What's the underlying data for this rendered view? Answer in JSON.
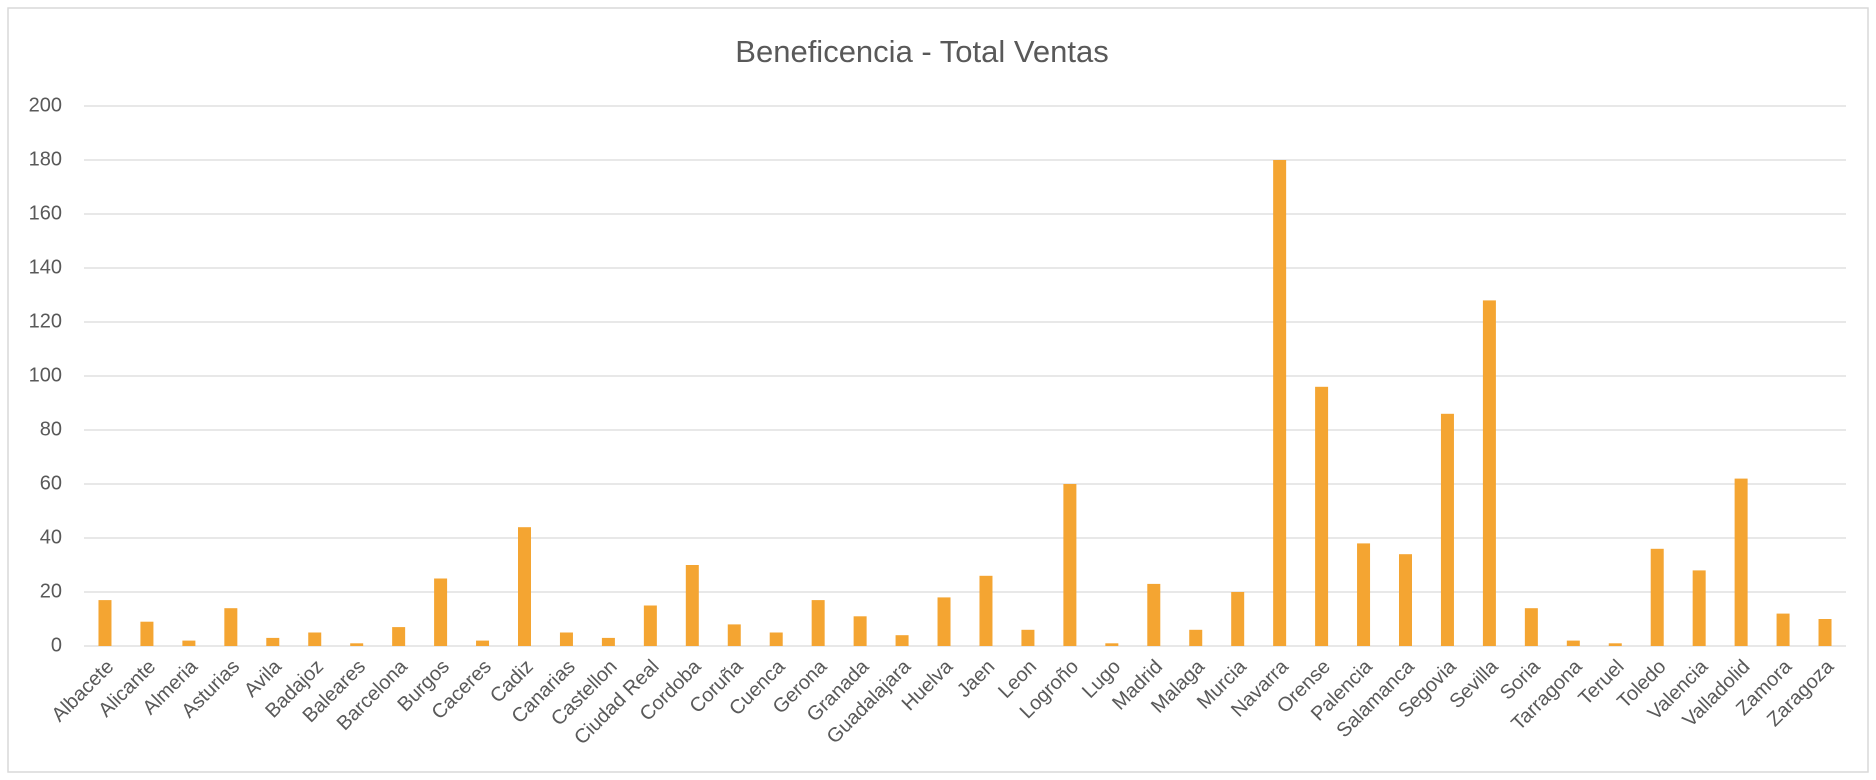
{
  "chart_data": {
    "type": "bar",
    "title": "Beneficencia - Total Ventas",
    "categories": [
      "Albacete",
      "Alicante",
      "Almeria",
      "Asturias",
      "Avila",
      "Badajoz",
      "Baleares",
      "Barcelona",
      "Burgos",
      "Caceres",
      "Cadiz",
      "Canarias",
      "Castellon",
      "Ciudad Real",
      "Cordoba",
      "Coruña",
      "Cuenca",
      "Gerona",
      "Granada",
      "Guadalajara",
      "Huelva",
      "Jaen",
      "Leon",
      "Logroño",
      "Lugo",
      "Madrid",
      "Malaga",
      "Murcia",
      "Navarra",
      "Orense",
      "Palencia",
      "Salamanca",
      "Segovia",
      "Sevilla",
      "Soria",
      "Tarragona",
      "Teruel",
      "Toledo",
      "Valencia",
      "Valladolid",
      "Zamora",
      "Zaragoza"
    ],
    "values": [
      17,
      9,
      2,
      14,
      3,
      5,
      1,
      7,
      25,
      2,
      44,
      5,
      3,
      15,
      30,
      8,
      5,
      17,
      11,
      4,
      18,
      26,
      6,
      60,
      1,
      23,
      6,
      20,
      180,
      96,
      38,
      34,
      86,
      128,
      14,
      2,
      1,
      36,
      28,
      62,
      12,
      10
    ],
    "color": "#f4a532",
    "ylim": [
      0,
      200
    ],
    "yticks": [
      0,
      20,
      40,
      60,
      80,
      100,
      120,
      140,
      160,
      180,
      200
    ],
    "grid": true
  }
}
